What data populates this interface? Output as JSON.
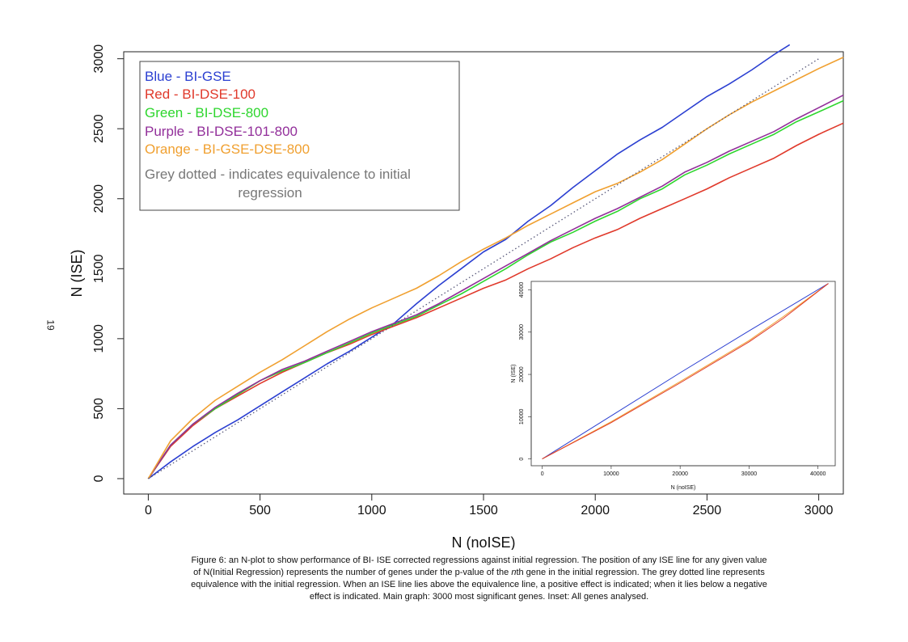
{
  "page_number": "19",
  "legend": {
    "lines": [
      {
        "text": "Blue - BI-GSE",
        "color": "#2b3fd1"
      },
      {
        "text": "Red - BI-DSE-100",
        "color": "#e0392b"
      },
      {
        "text": "Green - BI-DSE-800",
        "color": "#2ed62e"
      },
      {
        "text": "Purple - BI-DSE-101-800",
        "color": "#922f9a"
      },
      {
        "text": "Orange - BI-GSE-DSE-800",
        "color": "#f0a030"
      }
    ],
    "note_line1": "Grey dotted - indicates equivalence to initial",
    "note_line2": "regression",
    "note_color": "#777777"
  },
  "caption": {
    "line1": "Figure 6: an N-plot to show performance of BI- ISE corrected regressions against initial regression. The position of any ISE line for any given value",
    "line2_a": "of N(Initial Regression) represents the number of genes under the p-value of the ",
    "line2_em": "n",
    "line2_b": "th gene in the initial regression. The grey dotted line represents",
    "line3": "equivalence with the initial regression. When an ISE line lies above the equivalence line, a positive effect is indicated; when it lies below a negative",
    "line4": "effect is indicated. Main graph: 3000 most significant genes. Inset: All genes analysed."
  },
  "chart_data": [
    {
      "type": "line",
      "xlabel": "N (noISE)",
      "ylabel": "N (ISE)",
      "xlim": [
        -110,
        3110
      ],
      "ylim": [
        -110,
        3050
      ],
      "x_ticks": [
        0,
        500,
        1000,
        1500,
        2000,
        2500,
        3000
      ],
      "y_ticks": [
        0,
        500,
        1000,
        1500,
        2000,
        2500,
        3000
      ],
      "grid": false,
      "legend_position": "top-left",
      "series": [
        {
          "name": "Blue - BI-GSE",
          "color": "#2b3fd1",
          "x": [
            0,
            100,
            200,
            300,
            400,
            500,
            600,
            700,
            800,
            900,
            1000,
            1100,
            1200,
            1300,
            1400,
            1500,
            1600,
            1700,
            1800,
            1900,
            2000,
            2100,
            2200,
            2300,
            2400,
            2500,
            2600,
            2700,
            2800,
            2870
          ],
          "y": [
            0,
            120,
            230,
            330,
            420,
            520,
            620,
            720,
            820,
            910,
            1010,
            1110,
            1250,
            1380,
            1500,
            1620,
            1710,
            1840,
            1950,
            2080,
            2200,
            2320,
            2420,
            2510,
            2620,
            2730,
            2820,
            2920,
            3030,
            3100
          ]
        },
        {
          "name": "Red - BI-DSE-100",
          "color": "#e0392b",
          "x": [
            0,
            100,
            200,
            300,
            400,
            500,
            600,
            700,
            800,
            900,
            1000,
            1100,
            1200,
            1300,
            1400,
            1500,
            1600,
            1700,
            1800,
            1900,
            2000,
            2100,
            2200,
            2300,
            2400,
            2500,
            2600,
            2700,
            2800,
            2900,
            3000,
            3110
          ],
          "y": [
            0,
            230,
            380,
            500,
            590,
            680,
            760,
            830,
            900,
            960,
            1030,
            1090,
            1150,
            1220,
            1290,
            1360,
            1420,
            1500,
            1570,
            1650,
            1720,
            1780,
            1860,
            1930,
            2000,
            2070,
            2150,
            2220,
            2290,
            2380,
            2460,
            2540
          ]
        },
        {
          "name": "Green - BI-DSE-800",
          "color": "#2ed62e",
          "x": [
            0,
            100,
            200,
            300,
            400,
            500,
            600,
            700,
            800,
            900,
            1000,
            1100,
            1200,
            1300,
            1400,
            1500,
            1600,
            1700,
            1800,
            1900,
            2000,
            2100,
            2200,
            2300,
            2400,
            2500,
            2600,
            2700,
            2800,
            2900,
            3000,
            3110
          ],
          "y": [
            0,
            240,
            390,
            500,
            600,
            700,
            770,
            830,
            900,
            970,
            1040,
            1100,
            1160,
            1240,
            1320,
            1410,
            1500,
            1600,
            1690,
            1760,
            1840,
            1910,
            2000,
            2070,
            2170,
            2240,
            2320,
            2390,
            2460,
            2550,
            2620,
            2700
          ]
        },
        {
          "name": "Purple - BI-DSE-101-800",
          "color": "#922f9a",
          "x": [
            0,
            100,
            200,
            300,
            400,
            500,
            600,
            700,
            800,
            900,
            1000,
            1100,
            1200,
            1300,
            1400,
            1500,
            1600,
            1700,
            1800,
            1900,
            2000,
            2100,
            2200,
            2300,
            2400,
            2500,
            2600,
            2700,
            2800,
            2900,
            3000,
            3110
          ],
          "y": [
            0,
            240,
            390,
            510,
            610,
            700,
            780,
            840,
            910,
            980,
            1050,
            1110,
            1170,
            1250,
            1340,
            1430,
            1520,
            1610,
            1700,
            1780,
            1860,
            1930,
            2010,
            2090,
            2190,
            2260,
            2340,
            2410,
            2480,
            2570,
            2650,
            2740
          ]
        },
        {
          "name": "Orange - BI-GSE-DSE-800",
          "color": "#f0a030",
          "x": [
            0,
            100,
            200,
            300,
            400,
            500,
            600,
            700,
            800,
            900,
            1000,
            1100,
            1200,
            1300,
            1400,
            1500,
            1600,
            1700,
            1800,
            1900,
            2000,
            2100,
            2200,
            2300,
            2400,
            2500,
            2600,
            2700,
            2800,
            2900,
            3000,
            3110
          ],
          "y": [
            0,
            270,
            430,
            560,
            660,
            760,
            850,
            950,
            1050,
            1140,
            1220,
            1290,
            1360,
            1450,
            1550,
            1640,
            1720,
            1810,
            1890,
            1970,
            2050,
            2110,
            2190,
            2280,
            2390,
            2500,
            2600,
            2690,
            2770,
            2850,
            2930,
            3010
          ]
        },
        {
          "name": "Grey dotted - indicates equivalence to initial regression",
          "color": "#555577",
          "dashed": true,
          "x": [
            0,
            3000
          ],
          "y": [
            0,
            3000
          ]
        }
      ]
    },
    {
      "type": "line",
      "xlabel": "N (noISE)",
      "ylabel": "N (ISE)",
      "xlim": [
        -1600,
        42500
      ],
      "ylim": [
        -1600,
        42000
      ],
      "x_ticks": [
        0,
        10000,
        20000,
        30000,
        40000
      ],
      "y_ticks": [
        0,
        10000,
        20000,
        30000,
        40000
      ],
      "grid": false,
      "series": [
        {
          "name": "Blue - BI-GSE",
          "color": "#2b3fd1",
          "x": [
            0,
            10000,
            20000,
            30000,
            41500
          ],
          "y": [
            0,
            10200,
            20400,
            30300,
            41500
          ]
        },
        {
          "name": "Orange - BI-GSE-DSE-800",
          "color": "#f0a030",
          "x": [
            0,
            10000,
            20000,
            30000,
            35000,
            41500
          ],
          "y": [
            0,
            8800,
            18300,
            28000,
            33700,
            41500
          ]
        },
        {
          "name": "Red - BI-DSE-100",
          "color": "#e0392b",
          "x": [
            0,
            10000,
            20000,
            30000,
            35000,
            41500
          ],
          "y": [
            0,
            8600,
            18000,
            27700,
            33300,
            41500
          ]
        }
      ]
    }
  ]
}
